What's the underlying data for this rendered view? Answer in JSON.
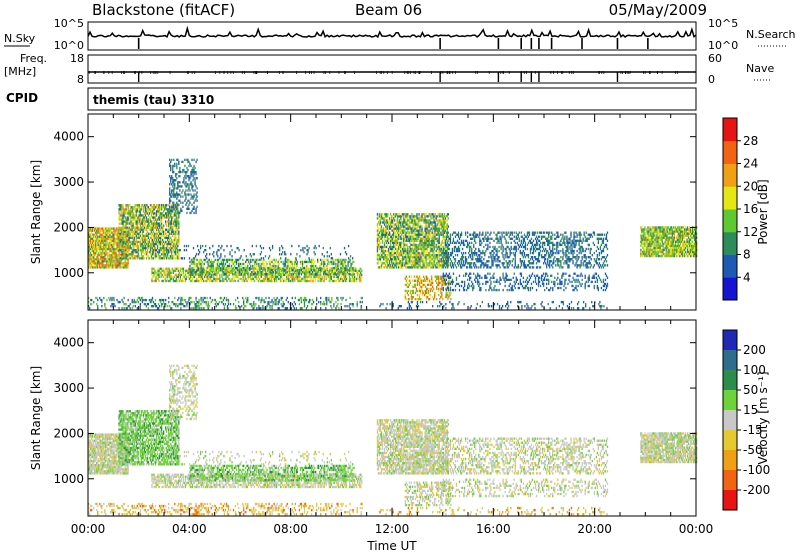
{
  "header": {
    "station": "Blackstone (fitACF)",
    "beam": "Beam 06",
    "date": "05/May/2009",
    "cpid_label": "CPID",
    "cpid_value": "themis (tau) 3310"
  },
  "chart_data": [
    {
      "type": "line",
      "name": "noise-panel",
      "left_label": "N.Sky",
      "right_label": "N.Search",
      "left_ticks": [
        "10^5",
        "10^0"
      ],
      "right_ticks": [
        "10^5",
        "10^0"
      ],
      "x_ticks": [
        "00:00",
        "04:00",
        "08:00",
        "12:00",
        "16:00",
        "20:00",
        "00:00"
      ],
      "xlim": [
        0,
        24
      ]
    },
    {
      "type": "line",
      "name": "freq-panel",
      "left_label": "Freq. [MHz]",
      "right_label": "Nave",
      "left_ticks": [
        18,
        8
      ],
      "right_ticks": [
        60,
        0
      ],
      "approx_freq_mhz": 10.5,
      "approx_nave": 20
    },
    {
      "type": "heatmap",
      "name": "power",
      "ylabel": "Slant Range [km]",
      "y_ticks": [
        1000,
        2000,
        3000,
        4000
      ],
      "ylim": [
        180,
        4500
      ],
      "xlim": [
        0,
        24
      ],
      "colorbar_label": "Power [dB]",
      "colorbar_ticks": [
        4,
        8,
        12,
        16,
        20,
        24,
        28
      ],
      "colorbar_range": [
        0,
        32
      ]
    },
    {
      "type": "heatmap",
      "name": "velocity",
      "ylabel": "Slant Range [km]",
      "y_ticks": [
        1000,
        2000,
        3000,
        4000
      ],
      "ylim": [
        180,
        4500
      ],
      "xlim": [
        0,
        24
      ],
      "colorbar_label": "Velocity [m s^-1]",
      "colorbar_ticks": [
        200,
        100,
        50,
        15,
        -15,
        -50,
        -100,
        -200
      ],
      "xlabel": "Time UT",
      "x_ticks": [
        "00:00",
        "04:00",
        "08:00",
        "12:00",
        "16:00",
        "20:00",
        "00:00"
      ]
    }
  ],
  "colors": {
    "power_scale": [
      "#1414d2",
      "#1e5ab4",
      "#2e8c5a",
      "#5fc832",
      "#e6e614",
      "#f0a014",
      "#f06414",
      "#e61414"
    ],
    "velocity_scale": [
      "#1e2ab4",
      "#2e6e8c",
      "#2e8c4a",
      "#6ed23a",
      "#c8c8c8",
      "#e6c830",
      "#f0a014",
      "#f06414",
      "#e61414"
    ]
  },
  "scatter_regions": [
    {
      "panel": "both",
      "t0": 0.0,
      "t1": 1.6,
      "r0": 1100,
      "r1": 2000,
      "density": 0.85,
      "pw": [
        10,
        28
      ],
      "vc": "grey"
    },
    {
      "panel": "both",
      "t0": 1.2,
      "t1": 3.6,
      "r0": 1300,
      "r1": 2500,
      "density": 0.7,
      "pw": [
        6,
        24
      ],
      "vc": "green"
    },
    {
      "panel": "both",
      "t0": 3.2,
      "t1": 4.3,
      "r0": 2300,
      "r1": 3500,
      "density": 0.35,
      "pw": [
        4,
        12
      ],
      "vc": "grey"
    },
    {
      "panel": "both",
      "t0": 2.5,
      "t1": 10.8,
      "r0": 800,
      "r1": 1100,
      "density": 0.6,
      "pw": [
        8,
        24
      ],
      "vc": "grey"
    },
    {
      "panel": "both",
      "t0": 4.0,
      "t1": 10.5,
      "r0": 950,
      "r1": 1300,
      "density": 0.5,
      "pw": [
        6,
        20
      ],
      "vc": "green"
    },
    {
      "panel": "both",
      "t0": 3.5,
      "t1": 10.5,
      "r0": 1300,
      "r1": 1600,
      "density": 0.12,
      "pw": [
        4,
        10
      ],
      "vc": "grey"
    },
    {
      "panel": "both",
      "t0": 0.0,
      "t1": 10.8,
      "r0": 200,
      "r1": 450,
      "density": 0.25,
      "pw": [
        4,
        16
      ],
      "vc": "yellow"
    },
    {
      "panel": "both",
      "t0": 11.4,
      "t1": 14.2,
      "r0": 1100,
      "r1": 2300,
      "density": 0.7,
      "pw": [
        6,
        22
      ],
      "vc": "grey"
    },
    {
      "panel": "both",
      "t0": 12.5,
      "t1": 14.3,
      "r0": 400,
      "r1": 900,
      "density": 0.45,
      "pw": [
        12,
        28
      ],
      "vc": "grey"
    },
    {
      "panel": "both",
      "t0": 14.0,
      "t1": 20.5,
      "r0": 1100,
      "r1": 1900,
      "density": 0.35,
      "pw": [
        4,
        12
      ],
      "vc": "grey"
    },
    {
      "panel": "both",
      "t0": 14.0,
      "t1": 20.5,
      "r0": 600,
      "r1": 1000,
      "density": 0.25,
      "pw": [
        4,
        10
      ],
      "vc": "grey"
    },
    {
      "panel": "both",
      "t0": 11.5,
      "t1": 20.5,
      "r0": 200,
      "r1": 350,
      "density": 0.15,
      "pw": [
        4,
        10
      ],
      "vc": "yellow"
    },
    {
      "panel": "both",
      "t0": 21.8,
      "t1": 24.0,
      "r0": 1350,
      "r1": 2000,
      "density": 0.8,
      "pw": [
        8,
        22
      ],
      "vc": "grey"
    }
  ]
}
